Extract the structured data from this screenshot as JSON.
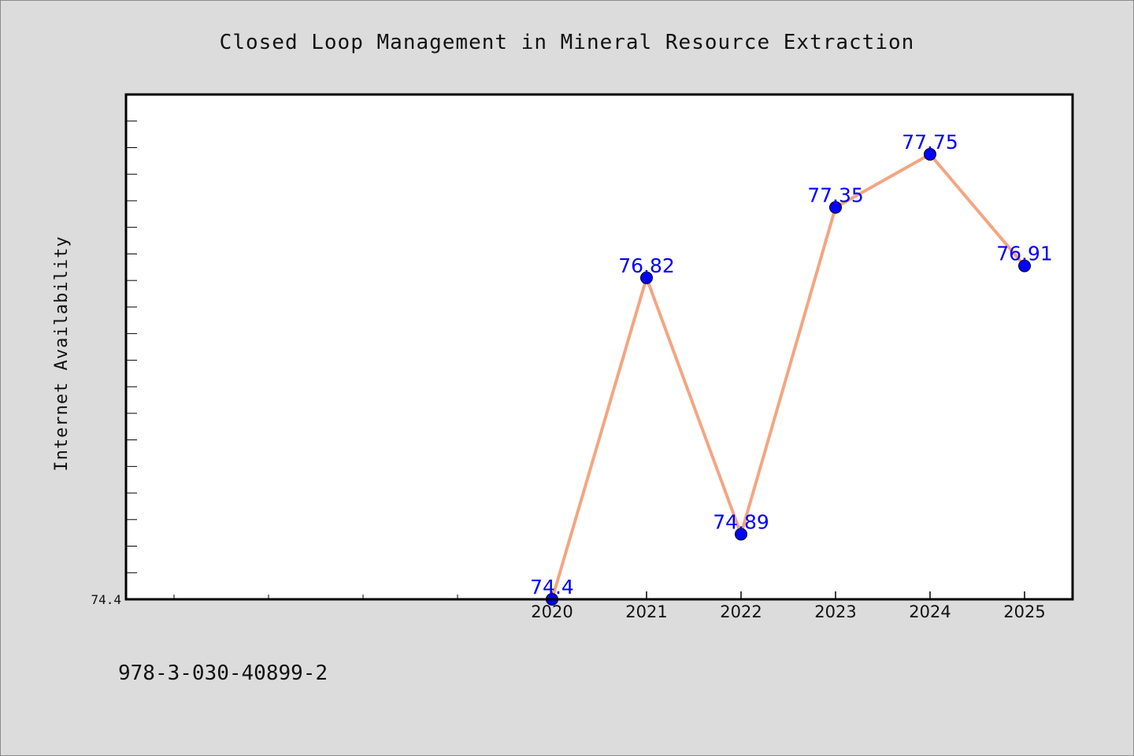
{
  "chart_data": {
    "type": "line",
    "title": "Closed Loop Management in Mineral Resource Extraction",
    "xlabel": "",
    "ylabel": "Internet Availability",
    "categories": [
      "2020",
      "2021",
      "2022",
      "2023",
      "2024",
      "2025"
    ],
    "series": [
      {
        "values": [
          74.4,
          76.82,
          74.89,
          77.35,
          77.75,
          76.91
        ],
        "data_labels": [
          "74.4",
          "76.82",
          "74.89",
          "77.35",
          "77.75",
          "76.91"
        ]
      }
    ],
    "y_tick_labels": [
      "74.4"
    ],
    "ylim": [
      74.4,
      78.2
    ],
    "x_minor_ticks_left_of_data": 4,
    "grid": false,
    "legend": "none",
    "colors": {
      "line": "#f4a582",
      "marker": "#0000ff",
      "data_label": "#0000ff",
      "plot_background": "#ffffff",
      "figure_background": "#dcdcdc"
    }
  },
  "footer": {
    "text": "978-3-030-40899-2"
  }
}
